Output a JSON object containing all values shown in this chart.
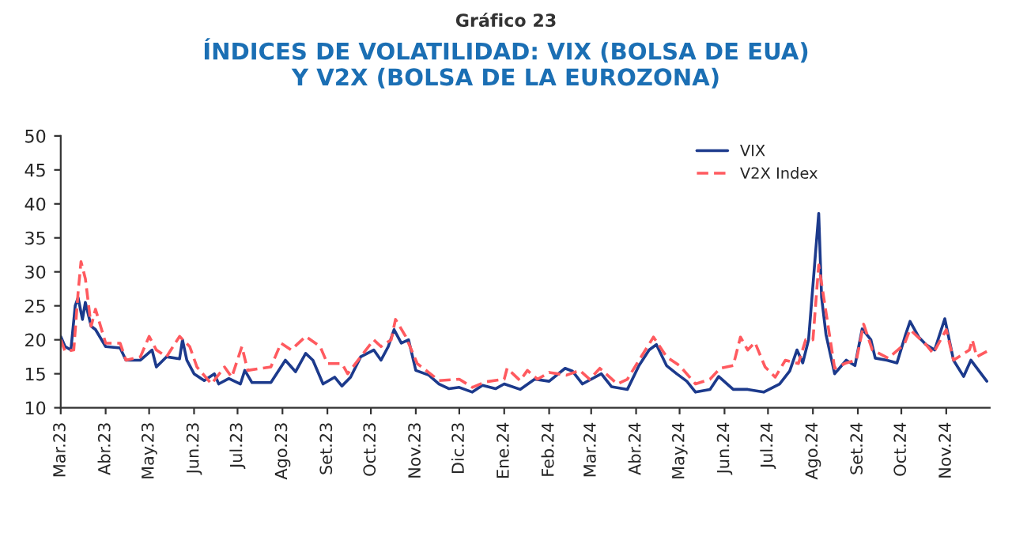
{
  "chart_data": {
    "type": "line",
    "subtitle": "Gráfico 23",
    "title": "ÍNDICES DE VOLATILIDAD: VIX (BOLSA DE EUA)\nY V2X (BOLSA DE LA EUROZONA)",
    "legend": "top right",
    "grid": false,
    "xlim": [
      "2023-03-01",
      "2024-12-01"
    ],
    "xticks": [
      {
        "value": "2023-03-01",
        "label": "Mar.23"
      },
      {
        "value": "2023-04-01",
        "label": "Abr.23"
      },
      {
        "value": "2023-05-01",
        "label": "May.23"
      },
      {
        "value": "2023-06-01",
        "label": "Jun.23"
      },
      {
        "value": "2023-07-01",
        "label": "Jul.23"
      },
      {
        "value": "2023-08-01",
        "label": "Ago.23"
      },
      {
        "value": "2023-09-01",
        "label": "Set.23"
      },
      {
        "value": "2023-10-01",
        "label": "Oct.23"
      },
      {
        "value": "2023-11-01",
        "label": "Nov.23"
      },
      {
        "value": "2023-12-01",
        "label": "Dic.23"
      },
      {
        "value": "2024-01-01",
        "label": "Ene.24"
      },
      {
        "value": "2024-02-01",
        "label": "Feb.24"
      },
      {
        "value": "2024-03-01",
        "label": "Mar.24"
      },
      {
        "value": "2024-04-01",
        "label": "Abr.24"
      },
      {
        "value": "2024-05-01",
        "label": "May.24"
      },
      {
        "value": "2024-06-01",
        "label": "Jun.24"
      },
      {
        "value": "2024-07-01",
        "label": "Jul.24"
      },
      {
        "value": "2024-08-01",
        "label": "Ago.24"
      },
      {
        "value": "2024-09-01",
        "label": "Set.24"
      },
      {
        "value": "2024-10-01",
        "label": "Oct.24"
      },
      {
        "value": "2024-11-01",
        "label": "Nov.24"
      }
    ],
    "ylim": [
      10,
      50
    ],
    "yticks": [
      10,
      15,
      20,
      25,
      30,
      35,
      40,
      45,
      50
    ],
    "series": [
      {
        "name": "VIX",
        "color": "#1c3a8c",
        "line_style": "solid",
        "x": [
          "2023-03-01",
          "2023-03-04",
          "2023-03-08",
          "2023-03-11",
          "2023-03-13",
          "2023-03-16",
          "2023-03-18",
          "2023-03-22",
          "2023-03-25",
          "2023-04-01",
          "2023-04-11",
          "2023-04-15",
          "2023-04-25",
          "2023-05-03",
          "2023-05-06",
          "2023-05-13",
          "2023-05-22",
          "2023-05-24",
          "2023-05-27",
          "2023-06-01",
          "2023-06-08",
          "2023-06-15",
          "2023-06-18",
          "2023-06-25",
          "2023-07-03",
          "2023-07-06",
          "2023-07-11",
          "2023-07-24",
          "2023-08-03",
          "2023-08-10",
          "2023-08-17",
          "2023-08-22",
          "2023-08-29",
          "2023-09-06",
          "2023-09-11",
          "2023-09-17",
          "2023-09-24",
          "2023-10-03",
          "2023-10-08",
          "2023-10-13",
          "2023-10-17",
          "2023-10-22",
          "2023-10-27",
          "2023-11-01",
          "2023-11-10",
          "2023-11-17",
          "2023-11-24",
          "2023-12-01",
          "2023-12-10",
          "2023-12-17",
          "2023-12-26",
          "2024-01-01",
          "2024-01-12",
          "2024-01-22",
          "2024-02-01",
          "2024-02-12",
          "2024-02-17",
          "2024-02-24",
          "2024-03-08",
          "2024-03-15",
          "2024-03-26",
          "2024-04-03",
          "2024-04-10",
          "2024-04-15",
          "2024-04-22",
          "2024-04-29",
          "2024-05-06",
          "2024-05-12",
          "2024-05-22",
          "2024-05-28",
          "2024-06-07",
          "2024-06-17",
          "2024-06-28",
          "2024-07-09",
          "2024-07-16",
          "2024-07-21",
          "2024-07-25",
          "2024-07-29",
          "2024-08-05",
          "2024-08-07",
          "2024-08-10",
          "2024-08-16",
          "2024-08-24",
          "2024-08-30",
          "2024-09-04",
          "2024-09-10",
          "2024-09-13",
          "2024-09-21",
          "2024-09-28",
          "2024-10-04",
          "2024-10-07",
          "2024-10-13",
          "2024-10-18",
          "2024-10-24",
          "2024-10-31",
          "2024-11-06",
          "2024-11-13",
          "2024-11-18",
          "2024-11-29"
        ],
        "values": [
          20.5,
          19,
          18.5,
          25,
          26.2,
          23,
          25.5,
          22,
          21.5,
          19,
          18.8,
          17,
          17,
          18.5,
          16,
          17.5,
          17.2,
          20,
          17,
          15,
          14,
          15,
          13.5,
          14.3,
          13.5,
          15.5,
          13.7,
          13.7,
          17,
          15.3,
          18,
          17,
          13.5,
          14.5,
          13.2,
          14.5,
          17.5,
          18.5,
          17,
          19,
          21.5,
          19.5,
          20,
          15.5,
          14.8,
          13.5,
          12.8,
          13,
          12.3,
          13.3,
          12.8,
          13.5,
          12.7,
          14.2,
          13.9,
          15.8,
          15.4,
          13.5,
          15,
          13.1,
          12.7,
          16.2,
          18.5,
          19.3,
          16.2,
          15,
          13.9,
          12.3,
          12.7,
          14.6,
          12.7,
          12.7,
          12.3,
          13.5,
          15.4,
          18.5,
          16.6,
          20,
          38.6,
          26.2,
          20.8,
          15,
          17,
          16.2,
          21.6,
          20,
          17.3,
          17,
          16.6,
          20.8,
          22.7,
          20.4,
          19.3,
          18.5,
          23.1,
          17,
          14.6,
          17,
          13.9
        ]
      },
      {
        "name": "V2X Index",
        "color": "#ff5a5f",
        "line_style": "dashed",
        "x": [
          "2023-03-01",
          "2023-03-04",
          "2023-03-10",
          "2023-03-13",
          "2023-03-15",
          "2023-03-18",
          "2023-03-22",
          "2023-03-25",
          "2023-04-01",
          "2023-04-11",
          "2023-04-15",
          "2023-04-25",
          "2023-05-01",
          "2023-05-06",
          "2023-05-13",
          "2023-05-22",
          "2023-05-29",
          "2023-06-03",
          "2023-06-13",
          "2023-06-22",
          "2023-06-27",
          "2023-07-04",
          "2023-07-08",
          "2023-07-24",
          "2023-07-31",
          "2023-08-07",
          "2023-08-17",
          "2023-08-27",
          "2023-09-01",
          "2023-09-11",
          "2023-09-15",
          "2023-09-24",
          "2023-10-03",
          "2023-10-08",
          "2023-10-15",
          "2023-10-18",
          "2023-10-25",
          "2023-11-02",
          "2023-11-17",
          "2023-12-01",
          "2023-12-10",
          "2023-12-19",
          "2024-01-01",
          "2024-01-03",
          "2024-01-12",
          "2024-01-17",
          "2024-01-24",
          "2024-02-01",
          "2024-02-13",
          "2024-02-22",
          "2024-02-29",
          "2024-03-07",
          "2024-03-19",
          "2024-03-26",
          "2024-04-03",
          "2024-04-13",
          "2024-04-22",
          "2024-05-01",
          "2024-05-12",
          "2024-05-22",
          "2024-05-29",
          "2024-06-07",
          "2024-06-12",
          "2024-06-17",
          "2024-06-22",
          "2024-06-29",
          "2024-07-06",
          "2024-07-13",
          "2024-07-22",
          "2024-07-27",
          "2024-08-01",
          "2024-08-05",
          "2024-08-16",
          "2024-08-24",
          "2024-08-31",
          "2024-09-05",
          "2024-09-11",
          "2024-09-22",
          "2024-10-03",
          "2024-10-07",
          "2024-10-18",
          "2024-10-23",
          "2024-11-01",
          "2024-11-06",
          "2024-11-17",
          "2024-11-19",
          "2024-11-22",
          "2024-11-29"
        ],
        "values": [
          20,
          18.3,
          18.5,
          27,
          31.5,
          29,
          22,
          24.5,
          19.5,
          19.5,
          17,
          17.5,
          20.5,
          18.5,
          17.5,
          20.5,
          19,
          16,
          13.5,
          16,
          14.5,
          19,
          15.5,
          16,
          19.5,
          18.5,
          20.5,
          19,
          16.5,
          16.5,
          15,
          17.5,
          20,
          19,
          20,
          23,
          20.5,
          16.5,
          14,
          14.2,
          13,
          13.8,
          14.2,
          15.8,
          14,
          15.5,
          14.2,
          15.2,
          14.8,
          15.5,
          14.2,
          15.8,
          13.5,
          14.2,
          17,
          20.4,
          17.5,
          16.2,
          13.5,
          14.2,
          15.8,
          16.2,
          20.4,
          18.5,
          19.6,
          16,
          14.5,
          17,
          16.5,
          20,
          20,
          31,
          15.8,
          16.6,
          17,
          22.3,
          18.5,
          17.3,
          19.3,
          21.5,
          19.3,
          18,
          21.5,
          17,
          18.5,
          20,
          17.5,
          18.3
        ]
      }
    ]
  }
}
